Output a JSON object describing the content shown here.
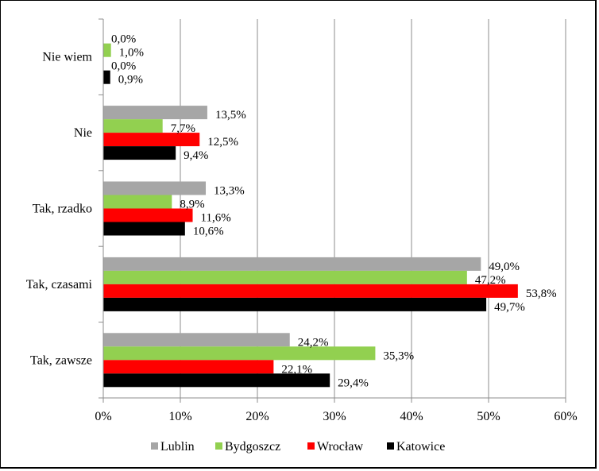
{
  "chart_data": {
    "type": "bar",
    "orientation": "horizontal",
    "title": "",
    "xlabel": "",
    "ylabel": "",
    "xlim": [
      0,
      60
    ],
    "x_ticks": [
      "0%",
      "10%",
      "20%",
      "30%",
      "40%",
      "50%",
      "60%"
    ],
    "grid": true,
    "legend_position": "bottom",
    "categories": [
      "Nie wiem",
      "Nie",
      "Tak, rzadko",
      "Tak, czasami",
      "Tak, zawsze"
    ],
    "series": [
      {
        "name": "Lublin",
        "color": "#a6a6a6",
        "values": [
          0.0,
          13.5,
          13.3,
          49.0,
          24.2
        ],
        "labels": [
          "0,0%",
          "13,5%",
          "13,3%",
          "49,0%",
          "24,2%"
        ]
      },
      {
        "name": "Bydgoszcz",
        "color": "#92d050",
        "values": [
          1.0,
          7.7,
          8.9,
          47.2,
          35.3
        ],
        "labels": [
          "1,0%",
          "7,7%",
          "8,9%",
          "47,2%",
          "35,3%"
        ]
      },
      {
        "name": "Wrocław",
        "color": "#ff0000",
        "values": [
          0.0,
          12.5,
          11.6,
          53.8,
          22.1
        ],
        "labels": [
          "0,0%",
          "12,5%",
          "11,6%",
          "53,8%",
          "22,1%"
        ]
      },
      {
        "name": "Katowice",
        "color": "#000000",
        "values": [
          0.9,
          9.4,
          10.6,
          49.7,
          29.4
        ],
        "labels": [
          "0,9%",
          "9,4%",
          "10,6%",
          "49,7%",
          "29,4%"
        ]
      }
    ]
  }
}
